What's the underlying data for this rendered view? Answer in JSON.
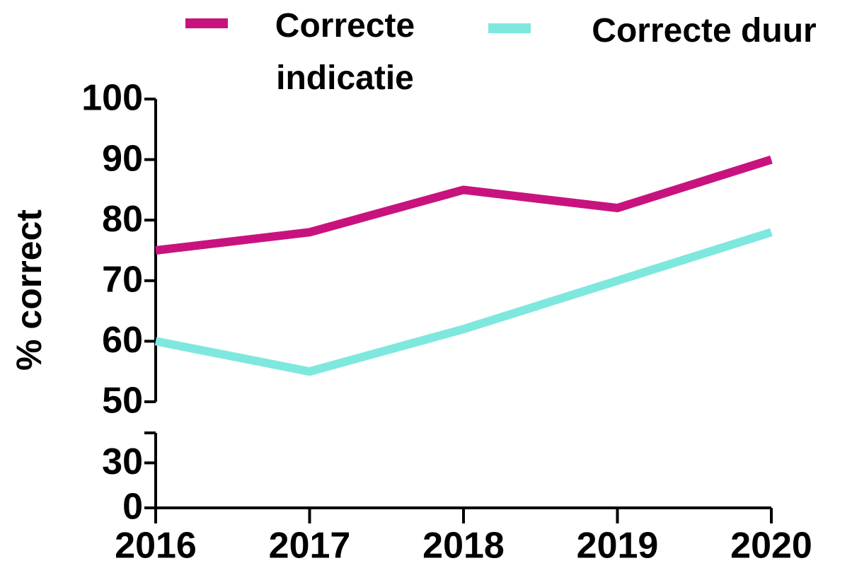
{
  "chart_data": {
    "type": "line",
    "y_label": "% correct",
    "categories": [
      "2016",
      "2017",
      "2018",
      "2019",
      "2020"
    ],
    "series": [
      {
        "name": "Correcte indicatie",
        "color": "#c8137f",
        "values": [
          75,
          78,
          85,
          82,
          90
        ]
      },
      {
        "name": "Correcte duur",
        "color": "#7ee8de",
        "values": [
          60,
          55,
          62,
          70,
          78
        ]
      }
    ],
    "ylim": [
      0,
      100
    ],
    "y_break": [
      50,
      50
    ],
    "ylim_lower": [
      0,
      50
    ],
    "ylim_upper": [
      50,
      100
    ],
    "yticks": [
      0,
      30,
      50,
      60,
      70,
      80,
      90,
      100
    ],
    "legend": "top"
  }
}
